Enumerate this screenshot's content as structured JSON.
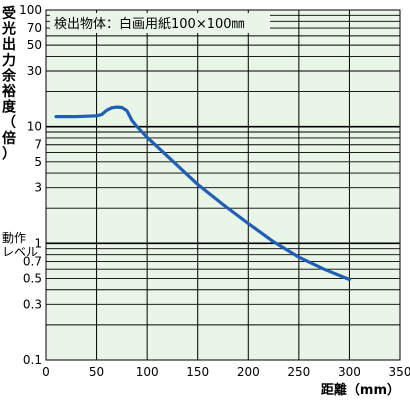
{
  "chart_data": {
    "type": "line",
    "annotation": "検出物体：白画用紙100×100㎜",
    "ylabel": "受光出力余裕度（倍）",
    "xlabel": "距離（mm）",
    "operating_level_label": [
      "動作",
      "レベル"
    ],
    "x_ticks": [
      0,
      50,
      100,
      150,
      200,
      250,
      300,
      350
    ],
    "xlim": [
      0,
      350
    ],
    "y_scale": "log",
    "ylim": [
      0.1,
      100
    ],
    "y_tick_labels": [
      {
        "v": 100,
        "t": "100"
      },
      {
        "v": 70,
        "t": "70"
      },
      {
        "v": 50,
        "t": "50"
      },
      {
        "v": 30,
        "t": "30"
      },
      {
        "v": 10,
        "t": "10"
      },
      {
        "v": 7,
        "t": "7"
      },
      {
        "v": 5,
        "t": "5"
      },
      {
        "v": 3,
        "t": "3"
      },
      {
        "v": 1,
        "t": "1"
      },
      {
        "v": 0.7,
        "t": "0.7"
      },
      {
        "v": 0.5,
        "t": "0.5"
      },
      {
        "v": 0.3,
        "t": "0.3"
      },
      {
        "v": 0.1,
        "t": "0.1"
      }
    ],
    "grid": true,
    "colors": {
      "background": "#e9f5e6",
      "line": "#1f5fb5",
      "grid": "#000000"
    },
    "series": [
      {
        "x": [
          10,
          20,
          30,
          40,
          50,
          55,
          60,
          65,
          70,
          75,
          80,
          85,
          90,
          100,
          125,
          150,
          175,
          200,
          225,
          250,
          275,
          300
        ],
        "y": [
          12.2,
          12.2,
          12.2,
          12.3,
          12.4,
          12.7,
          13.8,
          14.5,
          14.7,
          14.6,
          13.7,
          11.3,
          10,
          8.1,
          5.1,
          3.2,
          2.15,
          1.48,
          1.03,
          0.76,
          0.6,
          0.49
        ]
      }
    ]
  }
}
